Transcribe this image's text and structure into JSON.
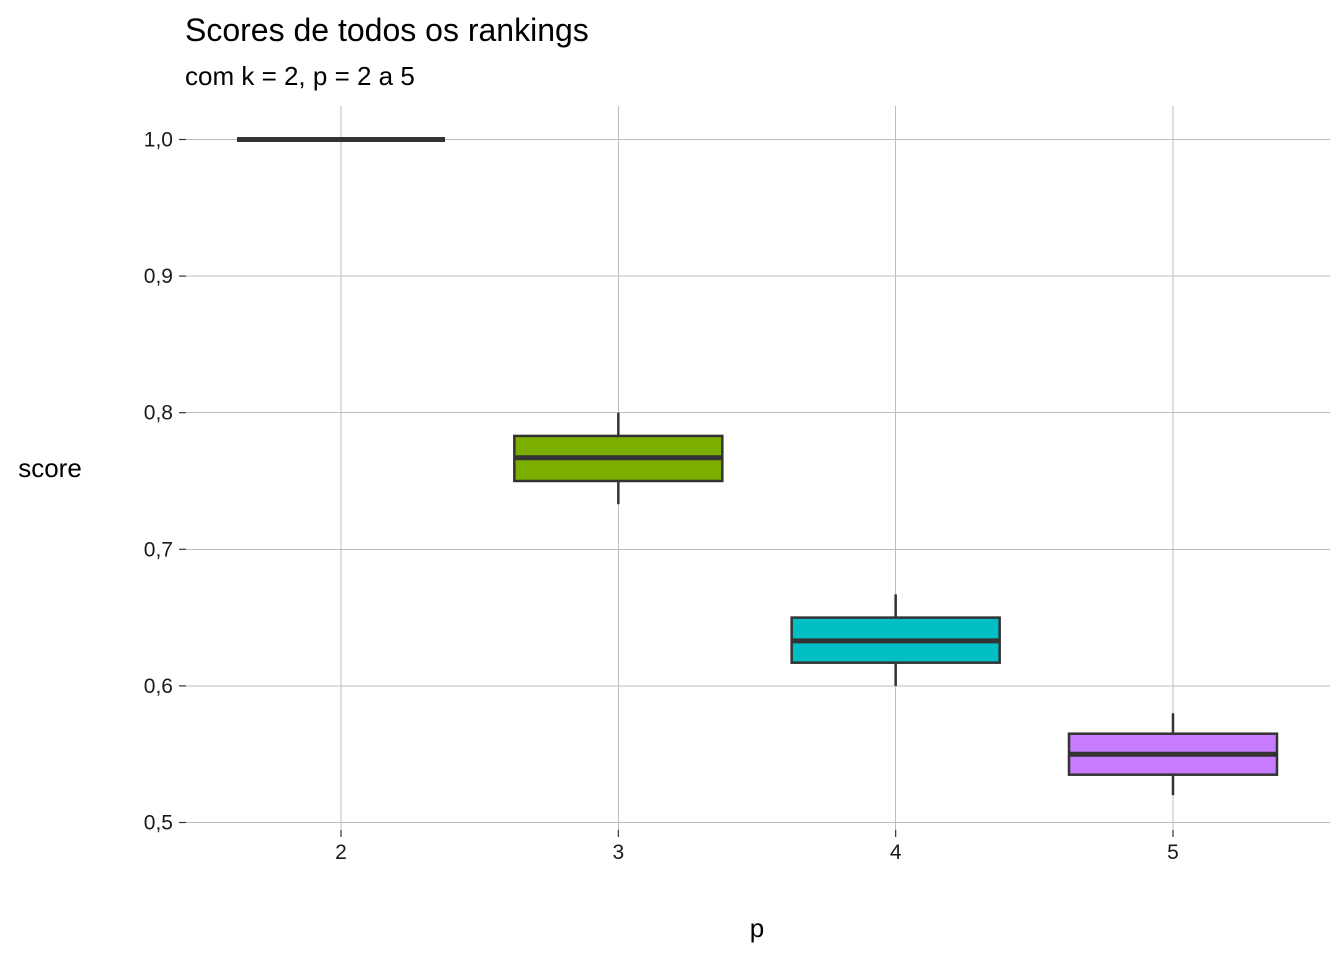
{
  "chart_data": {
    "type": "boxplot",
    "title": "Scores de todos os rankings",
    "subtitle": "com k = 2,  p = 2 a 5",
    "xlabel": "p",
    "ylabel": "score",
    "ylim": [
      0.5,
      1.0
    ],
    "y_ticks": [
      0.5,
      0.6,
      0.7,
      0.8,
      0.9,
      1.0
    ],
    "y_tick_labels": [
      "0,5",
      "0,6",
      "0,7",
      "0,8",
      "0,9",
      "1,0"
    ],
    "categories": [
      "2",
      "3",
      "4",
      "5"
    ],
    "grid": true,
    "legend": "none",
    "boxes": [
      {
        "category": "2",
        "min": 1.0,
        "q1": 1.0,
        "median": 1.0,
        "q3": 1.0,
        "max": 1.0,
        "color": "#F8766D"
      },
      {
        "category": "3",
        "min": 0.733,
        "q1": 0.75,
        "median": 0.767,
        "q3": 0.783,
        "max": 0.8,
        "color": "#7CAE00"
      },
      {
        "category": "4",
        "min": 0.6,
        "q1": 0.617,
        "median": 0.633,
        "q3": 0.65,
        "max": 0.667,
        "color": "#00BFC4"
      },
      {
        "category": "5",
        "min": 0.52,
        "q1": 0.535,
        "median": 0.55,
        "q3": 0.565,
        "max": 0.58,
        "color": "#C77CFF"
      }
    ],
    "outline_color": "#333333",
    "grid_color": "#bdbdbd"
  }
}
